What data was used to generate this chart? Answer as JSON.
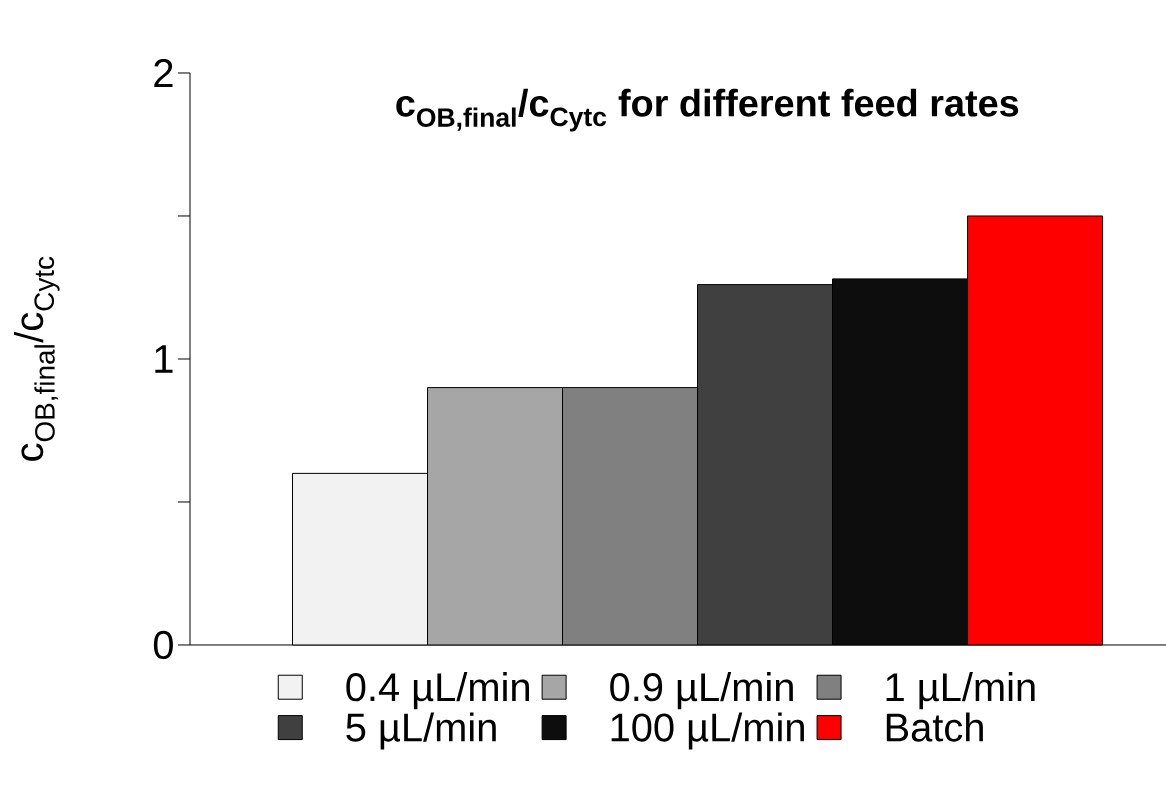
{
  "chart_data": {
    "type": "bar",
    "title": "c$_{OB,final}$/c$_{Cytc}$ for different feed rates",
    "ylabel": "c$_{OB,final}$/c$_{Cytc}$",
    "categories": [
      null
    ],
    "series": [
      {
        "name": "0.4 µL/min",
        "color": "#f2f2f2",
        "values": [
          0.6
        ]
      },
      {
        "name": "0.9 µL/min",
        "color": "#a6a6a6",
        "values": [
          0.9
        ]
      },
      {
        "name": "1 µL/min",
        "color": "#808080",
        "values": [
          0.9
        ]
      },
      {
        "name": "5 µL/min",
        "color": "#404040",
        "values": [
          1.26
        ]
      },
      {
        "name": "100 µL/min",
        "color": "#0d0d0d",
        "values": [
          1.28
        ]
      },
      {
        "name": "Batch",
        "color": "#ff0000",
        "values": [
          1.5
        ]
      }
    ],
    "ylim": [
      0,
      2
    ],
    "yticks": [
      0,
      {
        "value": 0.5,
        "label": null
      },
      1,
      {
        "value": 1.5,
        "label": null
      },
      2
    ],
    "legend": "bottom"
  }
}
